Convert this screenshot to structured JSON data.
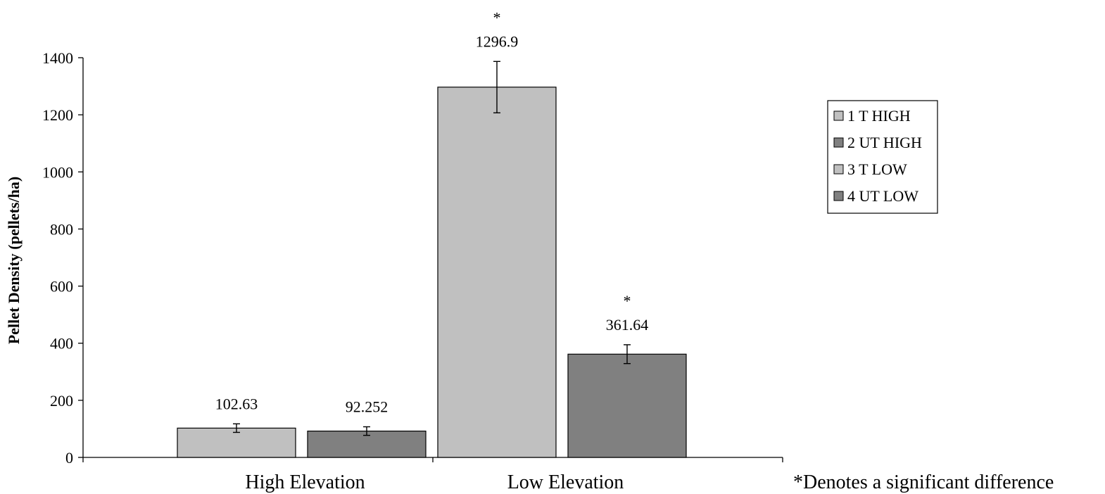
{
  "chart_data": {
    "type": "bar",
    "ylabel": "Pellet Density (pellets/ha)",
    "ylim": [
      0,
      1400
    ],
    "yticks": [
      0,
      200,
      400,
      600,
      800,
      1000,
      1200,
      1400
    ],
    "categories": [
      "High Elevation",
      "Low Elevation"
    ],
    "bars": [
      {
        "name": "1 T HIGH",
        "category": "High Elevation",
        "value": 102.63,
        "label": "102.63",
        "error": 15,
        "marker": "",
        "color": "#c0c0c0"
      },
      {
        "name": "2 UT HIGH",
        "category": "High Elevation",
        "value": 92.252,
        "label": "92.252",
        "error": 15,
        "marker": "",
        "color": "#808080"
      },
      {
        "name": "3 T LOW",
        "category": "Low Elevation",
        "value": 1296.9,
        "label": "1296.9",
        "error": 90,
        "marker": "*",
        "color": "#c0c0c0"
      },
      {
        "name": "4 UT LOW",
        "category": "Low Elevation",
        "value": 361.64,
        "label": "361.64",
        "error": 33,
        "marker": "*",
        "color": "#808080"
      }
    ],
    "legend": {
      "position": "right",
      "entries": [
        {
          "label": "1 T HIGH",
          "color": "#c0c0c0"
        },
        {
          "label": "2 UT HIGH",
          "color": "#808080"
        },
        {
          "label": "3 T LOW",
          "color": "#c0c0c0"
        },
        {
          "label": "4 UT LOW",
          "color": "#808080"
        }
      ]
    },
    "grid": false
  },
  "note": "*Denotes a significant difference"
}
